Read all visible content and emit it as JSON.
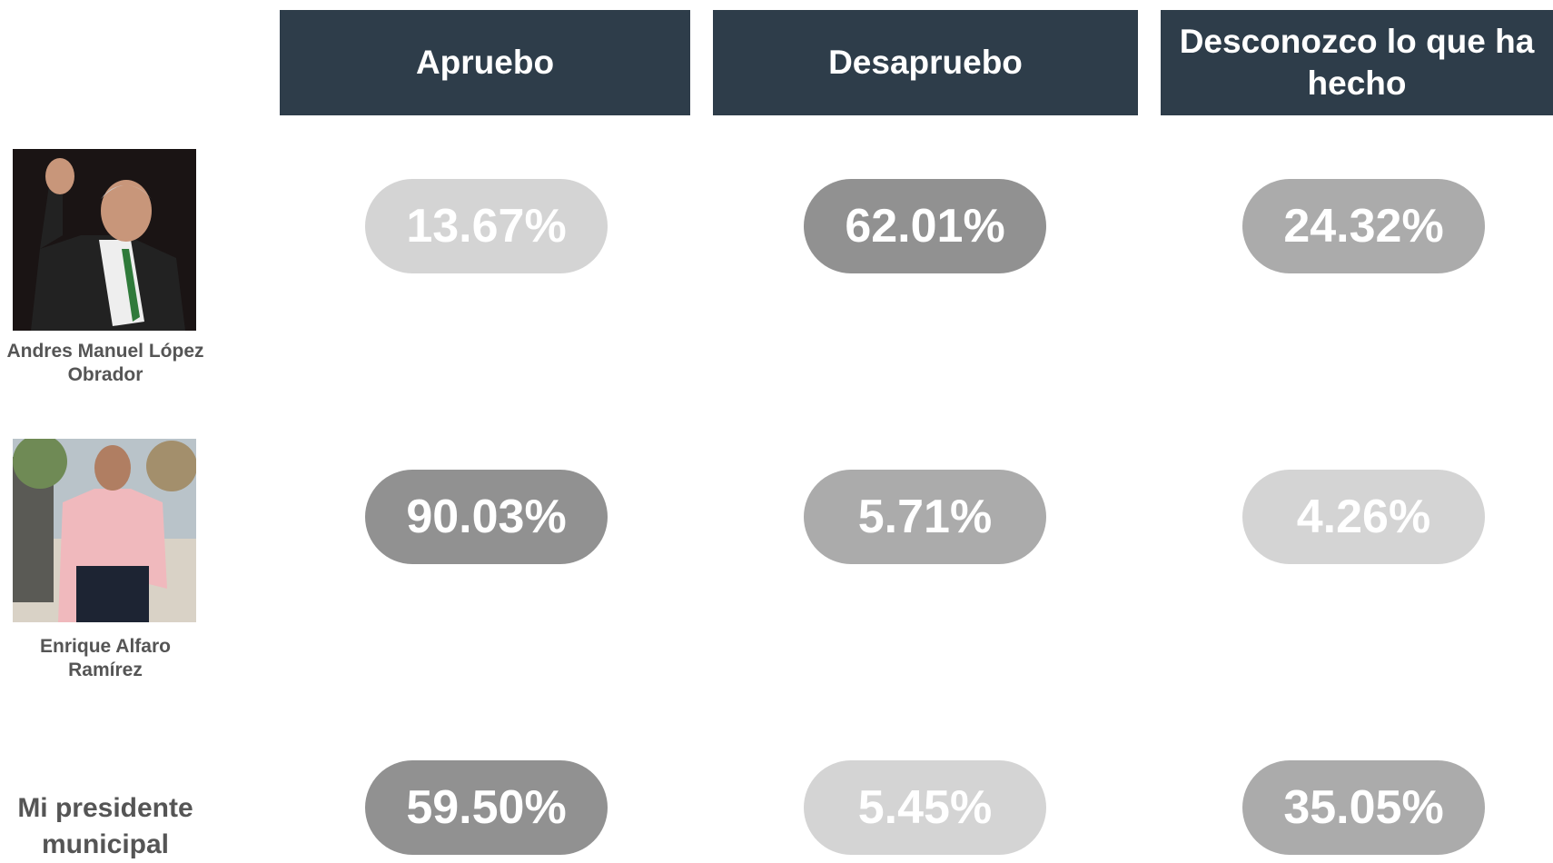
{
  "table": {
    "headers": [
      "Apruebo",
      "Desapruebo",
      "Desconozco lo que ha hecho"
    ],
    "rows": [
      {
        "name": "Andres Manuel López Obrador",
        "values": [
          "13.67%",
          "62.01%",
          "24.32%"
        ]
      },
      {
        "name": "Enrique Alfaro Ramírez",
        "values": [
          "90.03%",
          "5.71%",
          "4.26%"
        ]
      },
      {
        "name": "Mi presidente municipal",
        "values": [
          "59.50%",
          "5.45%",
          "35.05%"
        ]
      }
    ]
  }
}
